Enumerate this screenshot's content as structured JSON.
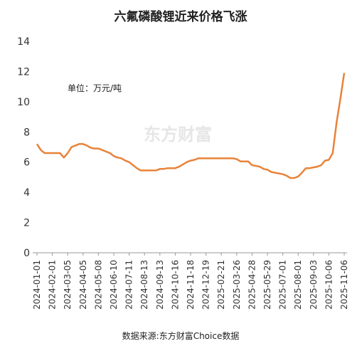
{
  "chart_data": {
    "type": "line",
    "title": "六氟磷酸锂近来价格飞涨",
    "annotation": "单位：万元/吨",
    "watermark": "东方财富",
    "source": "数据来源:东方财富Choice数据",
    "categories": [
      "2024-01-01",
      null,
      null,
      null,
      "2024-02-01",
      null,
      null,
      null,
      "2024-03-05",
      null,
      null,
      null,
      "2024-04-05",
      null,
      null,
      null,
      "2024-05-08",
      null,
      null,
      null,
      "2024-06-10",
      null,
      null,
      null,
      "2024-07-11",
      null,
      null,
      null,
      "2024-08-13",
      null,
      null,
      null,
      "2024-09-13",
      null,
      null,
      null,
      "2024-10-16",
      null,
      null,
      null,
      "2024-11-18",
      null,
      null,
      null,
      "2024-12-19",
      null,
      null,
      null,
      "2025-02-21",
      null,
      null,
      null,
      "2025-03-26",
      null,
      null,
      null,
      "2025-04-28",
      null,
      null,
      null,
      "2025-05-29",
      null,
      null,
      null,
      "2025-07-01",
      null,
      null,
      null,
      "2025-08-01",
      null,
      null,
      null,
      "2025-09-03",
      null,
      null,
      null,
      "2025-10-06",
      null,
      null,
      null,
      "2025-11-06"
    ],
    "series": [
      {
        "name": "六氟磷酸锂",
        "color": "#e8833a",
        "values": [
          7.2,
          6.8,
          6.6,
          6.6,
          6.6,
          6.6,
          6.6,
          6.3,
          6.6,
          7.0,
          7.1,
          7.2,
          7.2,
          7.1,
          6.95,
          6.9,
          6.9,
          6.8,
          6.7,
          6.6,
          6.4,
          6.3,
          6.25,
          6.1,
          6.0,
          5.8,
          5.6,
          5.45,
          5.45,
          5.45,
          5.45,
          5.45,
          5.55,
          5.55,
          5.6,
          5.6,
          5.6,
          5.7,
          5.85,
          6.0,
          6.1,
          6.15,
          6.25,
          6.25,
          6.25,
          6.25,
          6.25,
          6.25,
          6.25,
          6.25,
          6.25,
          6.25,
          6.2,
          6.05,
          6.05,
          6.05,
          5.8,
          5.75,
          5.7,
          5.55,
          5.5,
          5.35,
          5.3,
          5.25,
          5.2,
          5.1,
          4.95,
          4.95,
          5.05,
          5.3,
          5.6,
          5.6,
          5.65,
          5.7,
          5.8,
          6.1,
          6.15,
          6.6,
          8.6,
          10.2,
          11.9
        ]
      }
    ],
    "ylim": [
      0,
      14
    ],
    "yticks": [
      0,
      2,
      4,
      6,
      8,
      10,
      12,
      14
    ],
    "grid": false
  }
}
